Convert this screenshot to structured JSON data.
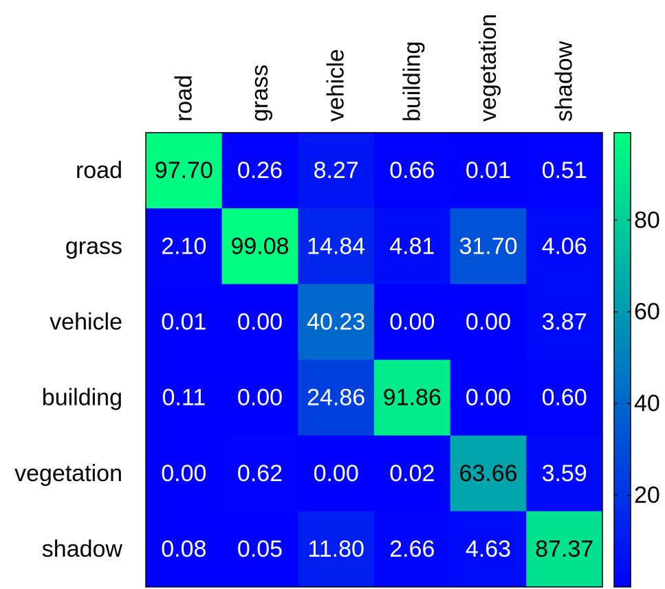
{
  "chart_data": {
    "type": "heatmap",
    "title": "",
    "xlabel": "",
    "ylabel": "",
    "x_categories": [
      "road",
      "grass",
      "vehicle",
      "building",
      "vegetation",
      "shadow"
    ],
    "y_categories": [
      "road",
      "grass",
      "vehicle",
      "building",
      "vegetation",
      "shadow"
    ],
    "values": [
      [
        97.7,
        0.26,
        8.27,
        0.66,
        0.01,
        0.51
      ],
      [
        2.1,
        99.08,
        14.84,
        4.81,
        31.7,
        4.06
      ],
      [
        0.01,
        0.0,
        40.23,
        0.0,
        0.0,
        3.87
      ],
      [
        0.11,
        0.0,
        24.86,
        91.86,
        0.0,
        0.6
      ],
      [
        0.0,
        0.62,
        0.0,
        0.02,
        63.66,
        3.59
      ],
      [
        0.08,
        0.05,
        11.8,
        2.66,
        4.63,
        87.37
      ]
    ],
    "colormap": "winter",
    "color_low": "#0000ff",
    "color_high": "#00ff80",
    "colorbar": {
      "min": 0,
      "max": 99.08,
      "ticks": [
        20,
        40,
        60,
        80
      ],
      "location": "right"
    },
    "text_color_dark_above": 50,
    "x_label_rotation": "vertical"
  }
}
